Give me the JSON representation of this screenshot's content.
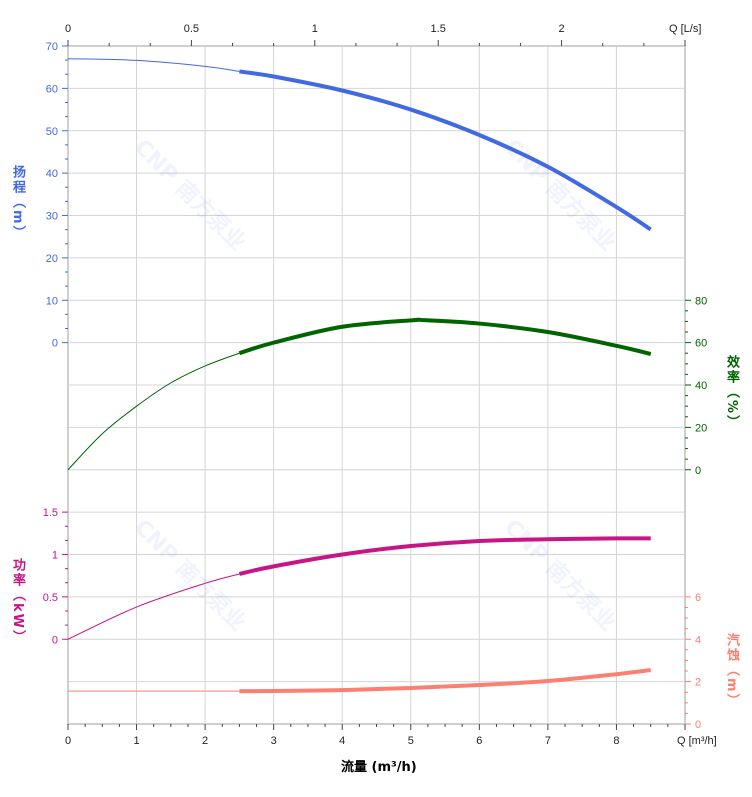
{
  "chart_data": {
    "type": "line",
    "xlabel": "流量 (m³/h)",
    "x_unit_bottom": "Q [m³/h]",
    "x_unit_top": "Q [L/s]",
    "xlim": [
      0,
      9
    ],
    "xlim_top": [
      0,
      2.5
    ],
    "x_ticks": [
      0,
      1,
      2,
      3,
      4,
      5,
      6,
      7,
      8
    ],
    "x_ticks_top": [
      "0",
      "0.5",
      "1",
      "1.5",
      "2"
    ],
    "grid": true,
    "watermark": "CNP 南方泵业",
    "operating_range": [
      2.5,
      8.5
    ],
    "series": [
      {
        "name": "扬程（m）",
        "axis": "left-top",
        "color": "#4169e1",
        "ylim": [
          0,
          70
        ],
        "ticks": [
          "70",
          "60",
          "50",
          "40",
          "30",
          "20",
          "10",
          "0"
        ],
        "x": [
          0,
          1,
          2,
          2.5,
          3,
          4,
          5,
          6,
          7,
          8,
          8.5
        ],
        "y": [
          67,
          66.6,
          65.2,
          64,
          62.8,
          59.5,
          55,
          49,
          41.5,
          32,
          26.7
        ]
      },
      {
        "name": "效率（%）",
        "axis": "right-top",
        "color": "#006400",
        "ylim": [
          0,
          80
        ],
        "ticks": [
          "80",
          "60",
          "40",
          "20",
          "0"
        ],
        "x": [
          0,
          0.5,
          1,
          1.5,
          2,
          2.5,
          3,
          4,
          5,
          5.2,
          6,
          7,
          8,
          8.5
        ],
        "y": [
          0,
          17,
          30,
          41,
          49,
          55,
          60,
          67.5,
          70.5,
          70.6,
          69,
          65,
          58.5,
          54.6
        ]
      },
      {
        "name": "功率（kW）",
        "axis": "left-bottom",
        "color": "#c71585",
        "ylim": [
          0,
          1.5
        ],
        "ticks": [
          "1.5",
          "1",
          "0.5",
          "0"
        ],
        "x": [
          0,
          1,
          2,
          2.5,
          3,
          4,
          5,
          6,
          7,
          8,
          8.5
        ],
        "y": [
          0,
          0.38,
          0.66,
          0.77,
          0.86,
          1.0,
          1.1,
          1.16,
          1.18,
          1.19,
          1.19
        ]
      },
      {
        "name": "汽蚀（m）",
        "axis": "right-bottom",
        "color": "#fa8072",
        "ylim": [
          0,
          6
        ],
        "ticks": [
          "6",
          "4",
          "2",
          "0"
        ],
        "x": [
          0,
          1,
          2,
          2.5,
          3,
          4,
          5,
          6,
          7,
          8,
          8.5
        ],
        "y": [
          1.55,
          1.55,
          1.55,
          1.55,
          1.56,
          1.6,
          1.7,
          1.84,
          2.03,
          2.35,
          2.55
        ]
      }
    ]
  }
}
